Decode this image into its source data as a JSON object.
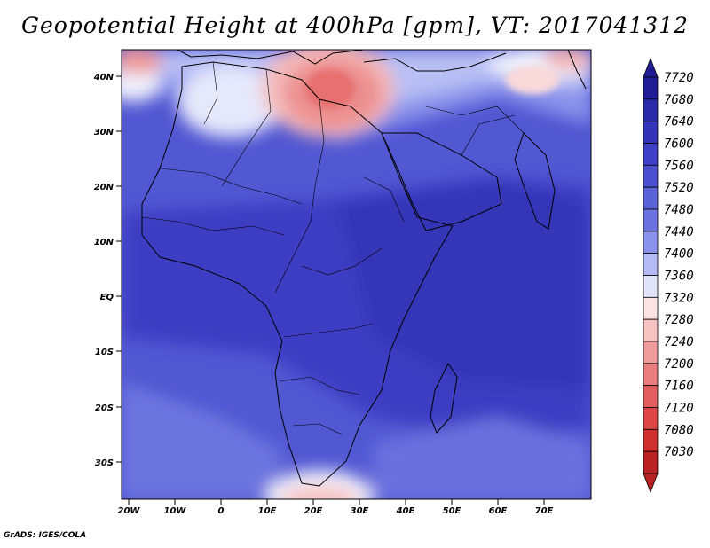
{
  "title": "Geopotential Height at 400hPa [gpm], VT: 2017041312",
  "credit": "GrADS: IGES/COLA",
  "axes": {
    "lat_labels": [
      "40N",
      "30N",
      "20N",
      "10N",
      "EQ",
      "10S",
      "20S",
      "30S"
    ],
    "lon_labels": [
      "20W",
      "10W",
      "0",
      "10E",
      "20E",
      "30E",
      "40E",
      "50E",
      "60E",
      "70E"
    ]
  },
  "colorbar": {
    "levels": [
      "7720",
      "7680",
      "7640",
      "7600",
      "7560",
      "7520",
      "7480",
      "7440",
      "7400",
      "7360",
      "7320",
      "7280",
      "7240",
      "7200",
      "7160",
      "7120",
      "7080",
      "7030"
    ],
    "colors": [
      "#1f1c95",
      "#2b2aa8",
      "#3534b9",
      "#3f3fc7",
      "#4c4fd0",
      "#5c62d8",
      "#6c73e0",
      "#8a92eb",
      "#b4bbf4",
      "#e2e5fa",
      "#fbe3e3",
      "#f6c2c2",
      "#f19c9c",
      "#ea7d7d",
      "#e35e5e",
      "#dd4545",
      "#cf3030",
      "#b82222"
    ]
  },
  "field": {
    "units": "gpm",
    "level": "400hPa",
    "valid_time": "2017041312",
    "background_color": "#4c4fd0"
  }
}
